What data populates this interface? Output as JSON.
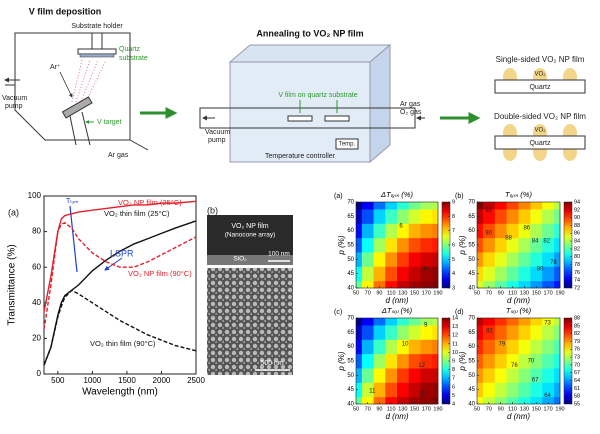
{
  "schematic": {
    "deposition": {
      "title": "V film deposition",
      "holder": "Substrate holder",
      "quartz": "Quartz",
      "substrate": "substrate",
      "ar_ion": "Ar⁺",
      "v_target": "V target",
      "vacuum": "Vacuum",
      "pump": "pump",
      "ar_gas": "Ar gas"
    },
    "annealing": {
      "title": "Annealing to VO₂ NP film",
      "v_film": "V film on quartz substrate",
      "vacuum": "Vacuum",
      "pump": "pump",
      "ar_gas": "Ar gas",
      "o2_gas": "O₂ gas",
      "temp": "Temp.",
      "controller": "Temperature controller"
    },
    "films": {
      "single": {
        "title": "Single-sided VO₂ NP film",
        "vo2": "VO₂",
        "quartz": "Quartz"
      },
      "double": {
        "title": "Double-sided VO₂ NP film",
        "vo2": "VO₂",
        "quartz": "Quartz"
      }
    }
  },
  "sem": {
    "label": "(b)",
    "title": "VO₂ NP film",
    "subtitle": "(Nanocone array)",
    "layer": "SiO₂",
    "scale_top": "100 nm",
    "scale_bottom": "500 nm"
  },
  "chart_data": [
    {
      "type": "line",
      "panel": "(a)",
      "xlabel": "Wavelength (nm)",
      "ylabel": "Transmittance (%)",
      "x": [
        300,
        400,
        500,
        550,
        600,
        700,
        800,
        1000,
        1200,
        1400,
        1600,
        1800,
        2000,
        2200,
        2500
      ],
      "xlim": [
        300,
        2500
      ],
      "xticks": [
        500,
        1000,
        1500,
        2000,
        2500
      ],
      "ylim": [
        0,
        100
      ],
      "yticks": [
        0,
        20,
        40,
        60,
        80,
        100
      ],
      "annotations": [
        "Tₗᵤₘ",
        "LSPR"
      ],
      "series": [
        {
          "name": "VO₂ NP film (25°C)",
          "color": "#e3202a",
          "linestyle": "solid",
          "values": [
            35,
            55,
            80,
            87,
            89,
            90,
            91,
            92,
            93,
            94,
            95,
            95,
            96,
            96,
            97
          ]
        },
        {
          "name": "VO₂ thin film (25°C)",
          "color": "#111111",
          "linestyle": "solid",
          "values": [
            5,
            15,
            33,
            40,
            44,
            47,
            50,
            58,
            64,
            69,
            73,
            76,
            79,
            82,
            86
          ]
        },
        {
          "name": "VO₂ NP film (90°C)",
          "color": "#e3202a",
          "linestyle": "dashed",
          "values": [
            25,
            50,
            80,
            84,
            85,
            82,
            76,
            68,
            63,
            60,
            60,
            63,
            67,
            71,
            77
          ]
        },
        {
          "name": "VO₂ thin film (90°C)",
          "color": "#111111",
          "linestyle": "dashed",
          "values": [
            5,
            15,
            32,
            38,
            43,
            47,
            45,
            40,
            35,
            30,
            26,
            22,
            19,
            16,
            13
          ]
        }
      ]
    },
    {
      "type": "heatmap",
      "panel": "(a)",
      "title": "ΔTₗᵤₘ (%)",
      "xlabel": "d (nm)",
      "ylabel": "p (%)",
      "x": [
        50,
        70,
        90,
        110,
        130,
        150,
        170,
        190
      ],
      "y": [
        40,
        45,
        50,
        55,
        60,
        65,
        70
      ],
      "xlim": [
        50,
        190
      ],
      "ylim": [
        40,
        70
      ],
      "xticks": [
        50,
        70,
        90,
        110,
        130,
        150,
        170,
        190
      ],
      "yticks": [
        40,
        45,
        50,
        55,
        60,
        65,
        70
      ],
      "clim": [
        3,
        9
      ],
      "cticks": [
        3,
        4,
        5,
        6,
        7,
        8,
        9
      ],
      "contour_labels": [
        6,
        8
      ],
      "z": [
        [
          5.8,
          6.8,
          7.6,
          8.2,
          8.6,
          8.8,
          8.9,
          9.0
        ],
        [
          5.3,
          6.4,
          7.2,
          7.8,
          8.3,
          8.6,
          8.8,
          8.9
        ],
        [
          4.8,
          5.9,
          6.8,
          7.4,
          7.9,
          8.3,
          8.5,
          8.6
        ],
        [
          4.3,
          5.3,
          6.2,
          6.9,
          7.4,
          7.8,
          8.0,
          8.1
        ],
        [
          3.8,
          4.8,
          5.6,
          6.3,
          6.8,
          7.2,
          7.4,
          7.5
        ],
        [
          3.4,
          4.2,
          5.0,
          5.6,
          6.1,
          6.5,
          6.8,
          6.9
        ],
        [
          3.0,
          3.7,
          4.4,
          5.0,
          5.5,
          5.9,
          6.2,
          6.3
        ]
      ]
    },
    {
      "type": "heatmap",
      "panel": "(b)",
      "title": "Tₗᵤₘ (%)",
      "xlabel": "d (nm)",
      "ylabel": "p (%)",
      "x": [
        50,
        70,
        90,
        110,
        130,
        150,
        170,
        190
      ],
      "y": [
        40,
        45,
        50,
        55,
        60,
        65,
        70
      ],
      "xlim": [
        50,
        190
      ],
      "ylim": [
        40,
        70
      ],
      "xticks": [
        50,
        70,
        90,
        110,
        130,
        150,
        170,
        190
      ],
      "yticks": [
        40,
        45,
        50,
        55,
        60,
        65,
        70
      ],
      "clim": [
        72,
        94
      ],
      "cticks": [
        72,
        74,
        76,
        78,
        80,
        82,
        84,
        86,
        88,
        90,
        92,
        94
      ],
      "contour_labels": [
        92,
        90,
        88,
        86,
        84,
        82,
        80,
        78
      ],
      "z": [
        [
          85,
          83.6,
          82.2,
          80.8,
          79.4,
          78,
          76.6,
          75.2
        ],
        [
          86.5,
          85.1,
          83.7,
          82.3,
          80.9,
          79.5,
          78.1,
          76.7
        ],
        [
          88,
          86.6,
          85.2,
          83.8,
          82.4,
          81,
          79.6,
          78.2
        ],
        [
          89.5,
          88.1,
          86.7,
          85.3,
          83.9,
          82.5,
          81.1,
          79.7
        ],
        [
          91,
          89.6,
          88.2,
          86.8,
          85.4,
          84,
          82.6,
          81.2
        ],
        [
          92.5,
          91.1,
          89.7,
          88.3,
          86.9,
          85.5,
          84.1,
          82.7
        ],
        [
          94,
          92.6,
          91.2,
          89.8,
          88.4,
          87,
          85.6,
          84.2
        ]
      ]
    },
    {
      "type": "heatmap",
      "panel": "(c)",
      "title": "ΔTₛₒₗ (%)",
      "xlabel": "d (nm)",
      "ylabel": "p (%)",
      "x": [
        50,
        70,
        90,
        110,
        130,
        150,
        170,
        190
      ],
      "y": [
        40,
        45,
        50,
        55,
        60,
        65,
        70
      ],
      "xlim": [
        50,
        190
      ],
      "ylim": [
        40,
        70
      ],
      "xticks": [
        50,
        70,
        90,
        110,
        130,
        150,
        170,
        190
      ],
      "yticks": [
        40,
        45,
        50,
        55,
        60,
        65,
        70
      ],
      "clim": [
        4,
        14
      ],
      "cticks": [
        4,
        5,
        6,
        7,
        8,
        9,
        10,
        11,
        12,
        13,
        14
      ],
      "contour_labels": [
        9,
        10,
        11,
        12,
        13
      ],
      "z": [
        [
          8.7,
          10.3,
          11.7,
          12.7,
          13.3,
          13.7,
          13.8,
          14.0
        ],
        [
          7.8,
          9.7,
          11.0,
          12.0,
          12.8,
          13.3,
          13.7,
          13.8
        ],
        [
          7.0,
          8.8,
          10.3,
          11.3,
          12.2,
          12.8,
          13.2,
          13.3
        ],
        [
          6.2,
          7.8,
          9.3,
          10.5,
          11.3,
          12.0,
          12.3,
          12.5
        ],
        [
          5.3,
          7.0,
          8.3,
          9.5,
          10.3,
          11.0,
          11.3,
          11.5
        ],
        [
          4.7,
          6.0,
          7.3,
          8.3,
          9.2,
          9.8,
          10.3,
          10.5
        ],
        [
          4.0,
          5.2,
          6.3,
          7.3,
          8.2,
          8.8,
          9.3,
          9.5
        ]
      ]
    },
    {
      "type": "heatmap",
      "panel": "(d)",
      "title": "Tₛₒₗ (%)",
      "xlabel": "d (nm)",
      "ylabel": "p (%)",
      "x": [
        50,
        70,
        90,
        110,
        130,
        150,
        170,
        190
      ],
      "y": [
        40,
        45,
        50,
        55,
        60,
        65,
        70
      ],
      "xlim": [
        50,
        190
      ],
      "ylim": [
        40,
        70
      ],
      "xticks": [
        50,
        70,
        90,
        110,
        130,
        150,
        170,
        190
      ],
      "yticks": [
        40,
        45,
        50,
        55,
        60,
        65,
        70
      ],
      "clim": [
        55,
        88
      ],
      "cticks": [
        55,
        58,
        61,
        64,
        67,
        70,
        73,
        76,
        79,
        82,
        85,
        88
      ],
      "contour_labels": [
        73,
        82,
        79,
        76,
        70,
        67,
        64
      ],
      "z": [
        [
          75.5,
          73.7,
          71.9,
          70.1,
          68.3,
          66.5,
          64.7,
          62.9
        ],
        [
          77.3,
          75.5,
          73.7,
          71.9,
          70.1,
          68.3,
          66.5,
          64.7
        ],
        [
          79,
          77.2,
          75.4,
          73.6,
          71.8,
          70,
          68.2,
          66.4
        ],
        [
          80.8,
          79.0,
          77.2,
          75.4,
          73.6,
          71.8,
          70.0,
          68.2
        ],
        [
          82.5,
          80.7,
          78.9,
          77.1,
          75.3,
          73.5,
          71.7,
          69.9
        ],
        [
          84.3,
          82.5,
          80.7,
          78.9,
          77.1,
          75.3,
          73.5,
          71.7
        ],
        [
          86,
          84.2,
          82.4,
          80.6,
          78.8,
          77,
          75.2,
          73.4
        ]
      ]
    }
  ]
}
